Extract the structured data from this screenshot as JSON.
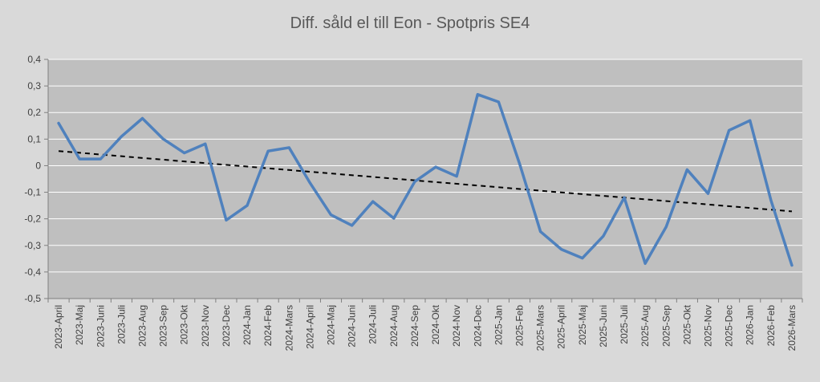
{
  "chart_data": {
    "type": "line",
    "title": "Diff. såld el till Eon - Spotpris SE4",
    "xlabel": "",
    "ylabel": "",
    "ylim": [
      -0.5,
      0.4
    ],
    "yticks": [
      "0,4",
      "0,3",
      "0,2",
      "0,1",
      "0",
      "-0,1",
      "-0,2",
      "-0,3",
      "-0,4",
      "-0,5"
    ],
    "ytick_values": [
      0.4,
      0.3,
      0.2,
      0.1,
      0,
      -0.1,
      -0.2,
      -0.3,
      -0.4,
      -0.5
    ],
    "grid": true,
    "legend": "none",
    "categories": [
      "2023-April",
      "2023-Maj",
      "2023-Juni",
      "2023-Juli",
      "2023-Aug",
      "2023-Sep",
      "2023-Okt",
      "2023-Nov",
      "2023-Dec",
      "2024-Jan",
      "2024-Feb",
      "2024-Mars",
      "2024-April",
      "2024-Maj",
      "2024-Juni",
      "2024-Juli",
      "2024-Aug",
      "2024-Sep",
      "2024-Okt",
      "2024-Nov",
      "2024-Dec",
      "2025-Jan",
      "2025-Feb",
      "2025-Mars",
      "2025-April",
      "2025-Maj",
      "2025-Juni",
      "2025-Juli",
      "2025-Aug",
      "2025-Sep",
      "2025-Okt",
      "2025-Nov",
      "2025-Dec",
      "2026-Jan",
      "2026-Feb",
      "2026-Mars"
    ],
    "series": [
      {
        "values": [
          0.16,
          0.025,
          0.025,
          0.11,
          0.178,
          0.1,
          0.048,
          0.082,
          -0.205,
          -0.15,
          0.055,
          0.068,
          -0.065,
          -0.185,
          -0.225,
          -0.135,
          -0.198,
          -0.06,
          -0.005,
          -0.04,
          0.268,
          0.24,
          0.008,
          -0.248,
          -0.315,
          -0.348,
          -0.265,
          -0.12,
          -0.368,
          -0.23,
          -0.015,
          -0.105,
          0.133,
          0.17,
          -0.13,
          -0.375
        ],
        "color": "#4f81bd"
      }
    ],
    "trendline": {
      "style": "dashed",
      "color": "#000000",
      "start": 0.055,
      "end": -0.172
    }
  }
}
